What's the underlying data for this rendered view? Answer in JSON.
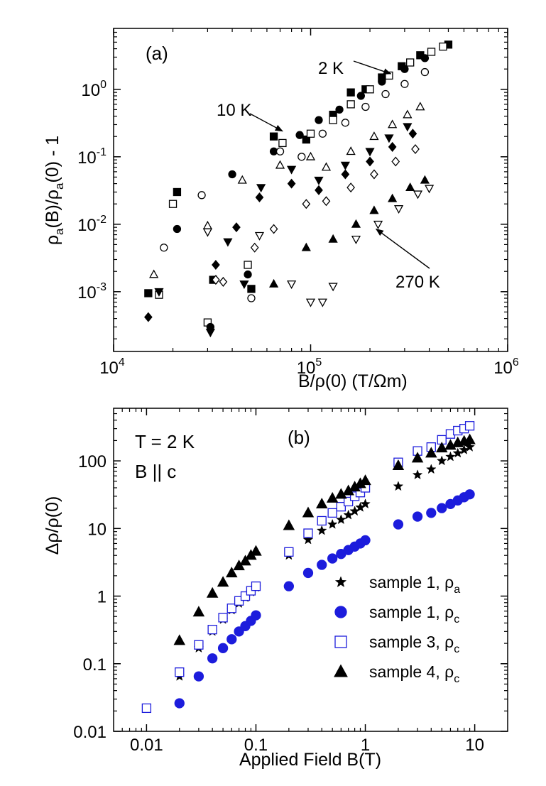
{
  "chart_data": [
    {
      "type": "scatter",
      "panel_label": "(a)",
      "xlabel": "B/ρ(0) (T/Ωm)",
      "ylabel": "ρa(B)/ρa(0) - 1",
      "xscale": "log",
      "yscale": "log",
      "xlim": [
        10000,
        1000000
      ],
      "ylim": [
        0.00013,
        8
      ],
      "x_ticks": [
        {
          "v": 10000,
          "base": "10",
          "exp": "4"
        },
        {
          "v": 100000,
          "base": "10",
          "exp": "5"
        },
        {
          "v": 1000000,
          "base": "10",
          "exp": "6"
        }
      ],
      "y_ticks": [
        {
          "v": 0.001,
          "base": "10",
          "exp": "-3"
        },
        {
          "v": 0.01,
          "base": "10",
          "exp": "-2"
        },
        {
          "v": 0.1,
          "base": "10",
          "exp": "-1"
        },
        {
          "v": 1,
          "base": "10",
          "exp": "0"
        }
      ],
      "annotations": [
        {
          "text": "2 K",
          "pointer": [
            255000,
            1.7
          ]
        },
        {
          "text": "10 K",
          "pointer": [
            72000,
            0.24
          ]
        },
        {
          "text": "270 K",
          "pointer": [
            215000,
            0.0085
          ]
        }
      ],
      "series": [
        {
          "marker": "square-filled",
          "points": [
            [
              15000,
              0.00095
            ],
            [
              21000,
              0.03
            ],
            [
              32000,
              0.0015
            ],
            [
              50000,
              0.0011
            ],
            [
              65000,
              0.2
            ],
            [
              95000,
              0.18
            ],
            [
              130000,
              0.42
            ],
            [
              160000,
              0.9
            ],
            [
              190000,
              1.0
            ],
            [
              230000,
              1.5
            ],
            [
              290000,
              2.2
            ],
            [
              360000,
              3.2
            ],
            [
              500000,
              4.6
            ]
          ]
        },
        {
          "marker": "square-open",
          "points": [
            [
              17000,
              0.0009
            ],
            [
              20000,
              0.02
            ],
            [
              30000,
              0.00035
            ],
            [
              48000,
              0.0025
            ],
            [
              72000,
              0.16
            ],
            [
              100000,
              0.22
            ],
            [
              130000,
              0.35
            ],
            [
              160000,
              0.6
            ],
            [
              200000,
              1.0
            ],
            [
              250000,
              1.6
            ],
            [
              320000,
              2.5
            ],
            [
              410000,
              3.6
            ],
            [
              470000,
              4.3
            ]
          ]
        },
        {
          "marker": "circle-filled",
          "points": [
            [
              21000,
              0.0085
            ],
            [
              31000,
              0.0003
            ],
            [
              40000,
              0.055
            ],
            [
              48000,
              0.0018
            ],
            [
              65000,
              0.12
            ],
            [
              88000,
              0.21
            ],
            [
              110000,
              0.35
            ],
            [
              140000,
              0.5
            ],
            [
              180000,
              0.8
            ],
            [
              230000,
              1.3
            ],
            [
              300000,
              2.0
            ],
            [
              380000,
              2.9
            ]
          ]
        },
        {
          "marker": "circle-open",
          "points": [
            [
              18000,
              0.0045
            ],
            [
              28000,
              0.027
            ],
            [
              50000,
              0.0008
            ],
            [
              70000,
              0.12
            ],
            [
              90000,
              0.1
            ],
            [
              115000,
              0.22
            ],
            [
              150000,
              0.32
            ],
            [
              190000,
              0.55
            ],
            [
              240000,
              0.85
            ],
            [
              300000,
              1.2
            ],
            [
              380000,
              1.8
            ]
          ]
        },
        {
          "marker": "triangle-up-open",
          "points": [
            [
              16000,
              0.0018
            ],
            [
              30000,
              0.0095
            ],
            [
              45000,
              0.045
            ],
            [
              70000,
              0.075
            ],
            [
              100000,
              0.1
            ],
            [
              120000,
              0.07
            ],
            [
              160000,
              0.12
            ],
            [
              210000,
              0.2
            ],
            [
              260000,
              0.3
            ],
            [
              310000,
              0.42
            ],
            [
              360000,
              0.55
            ]
          ]
        },
        {
          "marker": "triangle-down-filled",
          "points": [
            [
              17000,
              0.001
            ],
            [
              31000,
              0.00025
            ],
            [
              38000,
              0.0055
            ],
            [
              46000,
              0.0013
            ],
            [
              56000,
              0.035
            ],
            [
              80000,
              0.065
            ],
            [
              110000,
              0.045
            ],
            [
              150000,
              0.075
            ],
            [
              200000,
              0.12
            ],
            [
              250000,
              0.19
            ],
            [
              310000,
              0.28
            ]
          ]
        },
        {
          "marker": "diamond-filled",
          "points": [
            [
              15000,
              0.00042
            ],
            [
              33000,
              0.0025
            ],
            [
              42000,
              0.009
            ],
            [
              55000,
              0.025
            ],
            [
              80000,
              0.04
            ],
            [
              110000,
              0.032
            ],
            [
              150000,
              0.055
            ],
            [
              200000,
              0.085
            ],
            [
              260000,
              0.14
            ],
            [
              330000,
              0.22
            ]
          ]
        },
        {
          "marker": "diamond-open",
          "points": [
            [
              33000,
              0.0015
            ],
            [
              36000,
              0.0014
            ],
            [
              52000,
              0.0045
            ],
            [
              65000,
              0.0085
            ],
            [
              95000,
              0.02
            ],
            [
              120000,
              0.022
            ],
            [
              160000,
              0.035
            ],
            [
              210000,
              0.055
            ],
            [
              270000,
              0.085
            ],
            [
              340000,
              0.13
            ]
          ]
        },
        {
          "marker": "triangle-down-open",
          "points": [
            [
              30000,
              0.0077
            ],
            [
              55000,
              0.0068
            ],
            [
              80000,
              0.0013
            ],
            [
              100000,
              0.0007
            ],
            [
              115000,
              0.0007
            ],
            [
              130000,
              0.0012
            ],
            [
              170000,
              0.006
            ],
            [
              220000,
              0.01
            ],
            [
              280000,
              0.017
            ],
            [
              350000,
              0.028
            ],
            [
              400000,
              0.034
            ]
          ]
        },
        {
          "marker": "triangle-up-filled",
          "points": [
            [
              65000,
              0.0013
            ],
            [
              95000,
              0.0045
            ],
            [
              130000,
              0.006
            ],
            [
              170000,
              0.01
            ],
            [
              210000,
              0.016
            ],
            [
              260000,
              0.024
            ],
            [
              320000,
              0.035
            ],
            [
              380000,
              0.045
            ]
          ]
        }
      ]
    },
    {
      "type": "scatter",
      "panel_label": "(b)",
      "xlabel": "Applied Field B(T)",
      "ylabel": "Δρ/ρ(0)",
      "xscale": "log",
      "yscale": "log",
      "xlim": [
        0.005,
        20
      ],
      "ylim": [
        0.01,
        600
      ],
      "x_ticks": [
        {
          "v": 0.01,
          "label": "0.01"
        },
        {
          "v": 0.1,
          "label": "0.1"
        },
        {
          "v": 1,
          "label": "1"
        },
        {
          "v": 10,
          "label": "10"
        }
      ],
      "y_ticks": [
        {
          "v": 0.01,
          "label": "0.01"
        },
        {
          "v": 0.1,
          "label": "0.1"
        },
        {
          "v": 1,
          "label": "1"
        },
        {
          "v": 10,
          "label": "10"
        },
        {
          "v": 100,
          "label": "100"
        }
      ],
      "annotations": [
        {
          "text": "T = 2 K"
        },
        {
          "text": "B || c"
        }
      ],
      "legend_position": "bottom-right",
      "series": [
        {
          "legend_text": "sample 1, ρ",
          "legend_sub": "a",
          "marker": "star",
          "color": "#000000",
          "x": [
            0.02,
            0.03,
            0.04,
            0.05,
            0.06,
            0.07,
            0.08,
            0.09,
            0.1,
            0.2,
            0.3,
            0.4,
            0.5,
            0.6,
            0.7,
            0.8,
            0.9,
            1,
            2,
            3,
            4,
            5,
            6,
            7,
            8,
            9
          ],
          "y": [
            0.065,
            0.17,
            0.3,
            0.45,
            0.62,
            0.78,
            0.95,
            1.15,
            1.35,
            4,
            6.8,
            9.3,
            11.5,
            13.5,
            15.8,
            18,
            20.5,
            23,
            42,
            62,
            75,
            100,
            115,
            130,
            145,
            160
          ]
        },
        {
          "legend_text": "sample 1, ρ",
          "legend_sub": "c",
          "marker": "circle-filled",
          "color": "#1c1cdc",
          "x": [
            0.02,
            0.03,
            0.04,
            0.05,
            0.06,
            0.07,
            0.08,
            0.09,
            0.1,
            0.2,
            0.3,
            0.4,
            0.5,
            0.6,
            0.7,
            0.8,
            0.9,
            1,
            2,
            3,
            4,
            5,
            6,
            7,
            8,
            9
          ],
          "y": [
            0.026,
            0.065,
            0.12,
            0.17,
            0.23,
            0.3,
            0.36,
            0.43,
            0.52,
            1.4,
            2.2,
            2.9,
            3.6,
            4.2,
            4.8,
            5.4,
            6,
            6.7,
            11.5,
            15,
            17,
            20,
            23,
            26,
            29,
            32
          ]
        },
        {
          "legend_text": "sample 3, ρ",
          "legend_sub": "c",
          "marker": "square-open",
          "color": "#1c1cdc",
          "x": [
            0.01,
            0.02,
            0.03,
            0.04,
            0.05,
            0.06,
            0.07,
            0.08,
            0.09,
            0.1,
            0.2,
            0.3,
            0.4,
            0.5,
            0.6,
            0.7,
            0.8,
            0.9,
            1,
            2,
            3,
            4,
            5,
            6,
            7,
            8,
            9
          ],
          "y": [
            0.022,
            0.075,
            0.19,
            0.32,
            0.48,
            0.66,
            0.85,
            1,
            1.2,
            1.4,
            4.5,
            8.5,
            13,
            17,
            21,
            25,
            30,
            34,
            40,
            95,
            140,
            160,
            205,
            250,
            280,
            300,
            330
          ]
        },
        {
          "legend_text": "sample 4, ρ",
          "legend_sub": "c",
          "marker": "triangle-up-filled",
          "color": "#000000",
          "x": [
            0.02,
            0.03,
            0.04,
            0.05,
            0.06,
            0.07,
            0.08,
            0.09,
            0.1,
            0.2,
            0.3,
            0.4,
            0.5,
            0.6,
            0.7,
            0.8,
            0.9,
            1,
            2,
            3,
            4,
            5,
            6,
            7,
            8,
            9
          ],
          "y": [
            0.22,
            0.58,
            1.1,
            1.6,
            2.2,
            2.8,
            3.3,
            4,
            4.6,
            11,
            17,
            23,
            28,
            32,
            36,
            41,
            46,
            51,
            85,
            110,
            130,
            155,
            170,
            185,
            195,
            205
          ]
        }
      ]
    }
  ]
}
